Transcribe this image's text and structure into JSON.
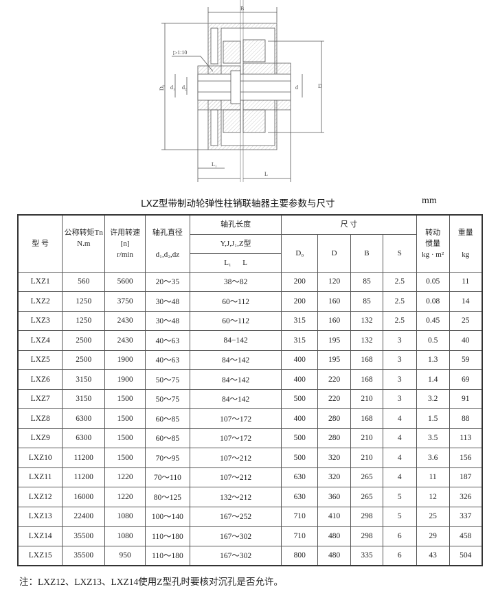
{
  "drawing": {
    "labels": {
      "B": "B",
      "D0": "D₀",
      "d1": "d₁",
      "dz": "d₂",
      "d": "d",
      "D": "D",
      "L1": "L₁",
      "L": "L",
      "taper": "▷1:10"
    }
  },
  "title": "LXZ型带制动轮弹性柱销联轴器主要参数与尺寸",
  "unit": "mm",
  "table": {
    "headers": {
      "model": "型 号",
      "torque": "公称转矩Tn",
      "torque_unit": "N.m",
      "speed": "许用转速",
      "speed_sym": "[n]",
      "speed_unit": "r/min",
      "bore_dia": "轴孔直径",
      "bore_dia_sym": "d₁,d₂,dz",
      "bore_len": "轴孔长度",
      "bore_type": "Y,J,J₁,Z型",
      "bore_len_sym": "L₁      L",
      "dims": "尺    寸",
      "D0": "D₀",
      "D": "D",
      "B": "B",
      "S": "S",
      "inertia": "转动",
      "inertia2": "惯量",
      "inertia_unit": "kg · m²",
      "weight": "重量",
      "weight_unit": "kg"
    },
    "rows": [
      [
        "LXZ1",
        "560",
        "5600",
        "20～35",
        "38～82",
        "200",
        "120",
        "85",
        "2.5",
        "0.05",
        "11"
      ],
      [
        "LXZ2",
        "1250",
        "3750",
        "30～48",
        "60～112",
        "200",
        "160",
        "85",
        "2.5",
        "0.08",
        "14"
      ],
      [
        "LXZ3",
        "1250",
        "2430",
        "30～48",
        "60～112",
        "315",
        "160",
        "132",
        "2.5",
        "0.45",
        "25"
      ],
      [
        "LXZ4",
        "2500",
        "2430",
        "40～63",
        "84−142",
        "315",
        "195",
        "132",
        "3",
        "0.5",
        "40"
      ],
      [
        "LXZ5",
        "2500",
        "1900",
        "40～63",
        "84～142",
        "400",
        "195",
        "168",
        "3",
        "1.3",
        "59"
      ],
      [
        "LXZ6",
        "3150",
        "1900",
        "50～75",
        "84～142",
        "400",
        "220",
        "168",
        "3",
        "1.4",
        "69"
      ],
      [
        "LXZ7",
        "3150",
        "1500",
        "50～75",
        "84～142",
        "500",
        "220",
        "210",
        "3",
        "3.2",
        "91"
      ],
      [
        "LXZ8",
        "6300",
        "1500",
        "60～85",
        "107～172",
        "400",
        "280",
        "168",
        "4",
        "1.5",
        "88"
      ],
      [
        "LXZ9",
        "6300",
        "1500",
        "60～85",
        "107～172",
        "500",
        "280",
        "210",
        "4",
        "3.5",
        "113"
      ],
      [
        "LXZ10",
        "11200",
        "1500",
        "70～95",
        "107～212",
        "500",
        "320",
        "210",
        "4",
        "3.6",
        "156"
      ],
      [
        "LXZ11",
        "11200",
        "1220",
        "70～110",
        "107～212",
        "630",
        "320",
        "265",
        "4",
        "11",
        "187"
      ],
      [
        "LXZ12",
        "16000",
        "1220",
        "80～125",
        "132～212",
        "630",
        "360",
        "265",
        "5",
        "12",
        "326"
      ],
      [
        "LXZ13",
        "22400",
        "1080",
        "100～140",
        "167～252",
        "710",
        "410",
        "298",
        "5",
        "25",
        "337"
      ],
      [
        "LXZ14",
        "35500",
        "1080",
        "110～180",
        "167～302",
        "710",
        "480",
        "298",
        "6",
        "29",
        "458"
      ],
      [
        "LXZ15",
        "35500",
        "950",
        "110～180",
        "167～302",
        "800",
        "480",
        "335",
        "6",
        "43",
        "504"
      ]
    ]
  },
  "note": "注：LXZ12、LXZ13、LXZ14使用Z型孔时要核对沉孔是否允许。"
}
